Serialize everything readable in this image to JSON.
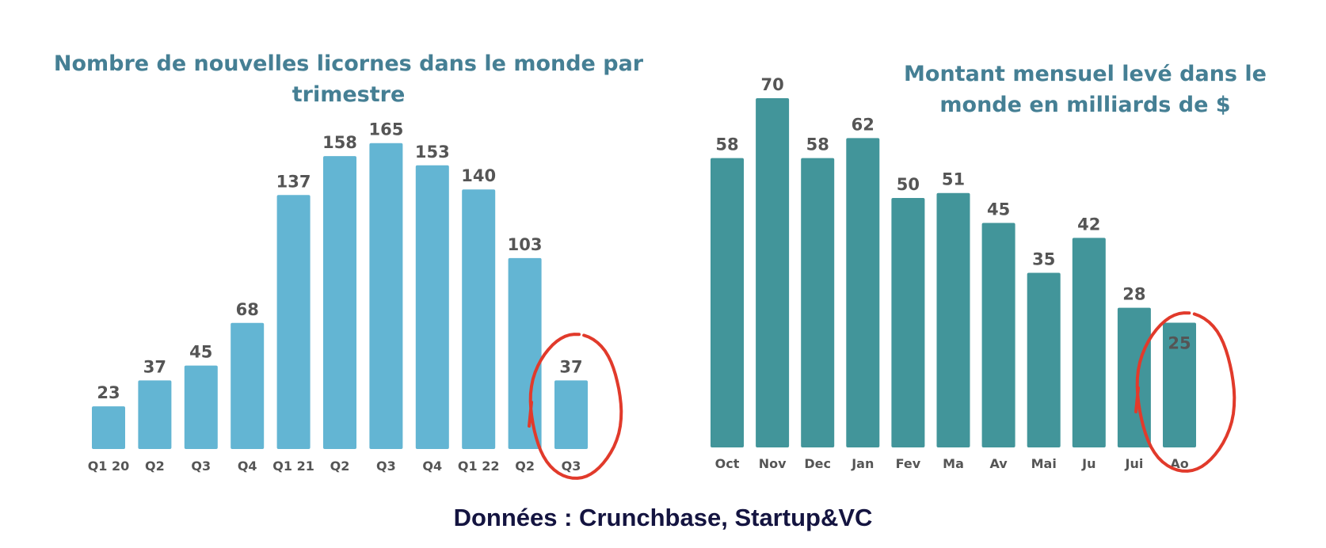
{
  "chart_data": [
    {
      "type": "bar",
      "title": "Nombre de nouvelles licornes dans le monde par trimestre",
      "title_lines": [
        "Nombre de nouvelles licornes dans le monde par",
        "trimestre"
      ],
      "categories": [
        "Q1 20",
        "Q2",
        "Q3",
        "Q4",
        "Q1 21",
        "Q2",
        "Q3",
        "Q4",
        "Q1 22",
        "Q2",
        "Q3"
      ],
      "values": [
        23,
        37,
        45,
        68,
        137,
        158,
        165,
        153,
        140,
        103,
        37
      ],
      "ylim": [
        0,
        170
      ],
      "color": "#63b5d3",
      "highlight_index": 10,
      "highlight_color": "#e13a2b",
      "grid": false
    },
    {
      "type": "bar",
      "title": "Montant mensuel levé dans le monde en milliards de $",
      "title_lines": [
        "Montant mensuel levé dans le",
        "monde en milliards de $"
      ],
      "categories": [
        "Oct",
        "Nov",
        "Dec",
        "Jan",
        "Fev",
        "Ma",
        "Av",
        "Mai",
        "Ju",
        "Jui",
        "Ao"
      ],
      "values": [
        58,
        70,
        58,
        62,
        50,
        51,
        45,
        35,
        42,
        28,
        25
      ],
      "ylim": [
        0,
        70
      ],
      "color": "#42959a",
      "highlight_index": 10,
      "highlight_color": "#e13a2b",
      "grid": false
    }
  ],
  "source": "Données : Crunchbase, Startup&VC"
}
